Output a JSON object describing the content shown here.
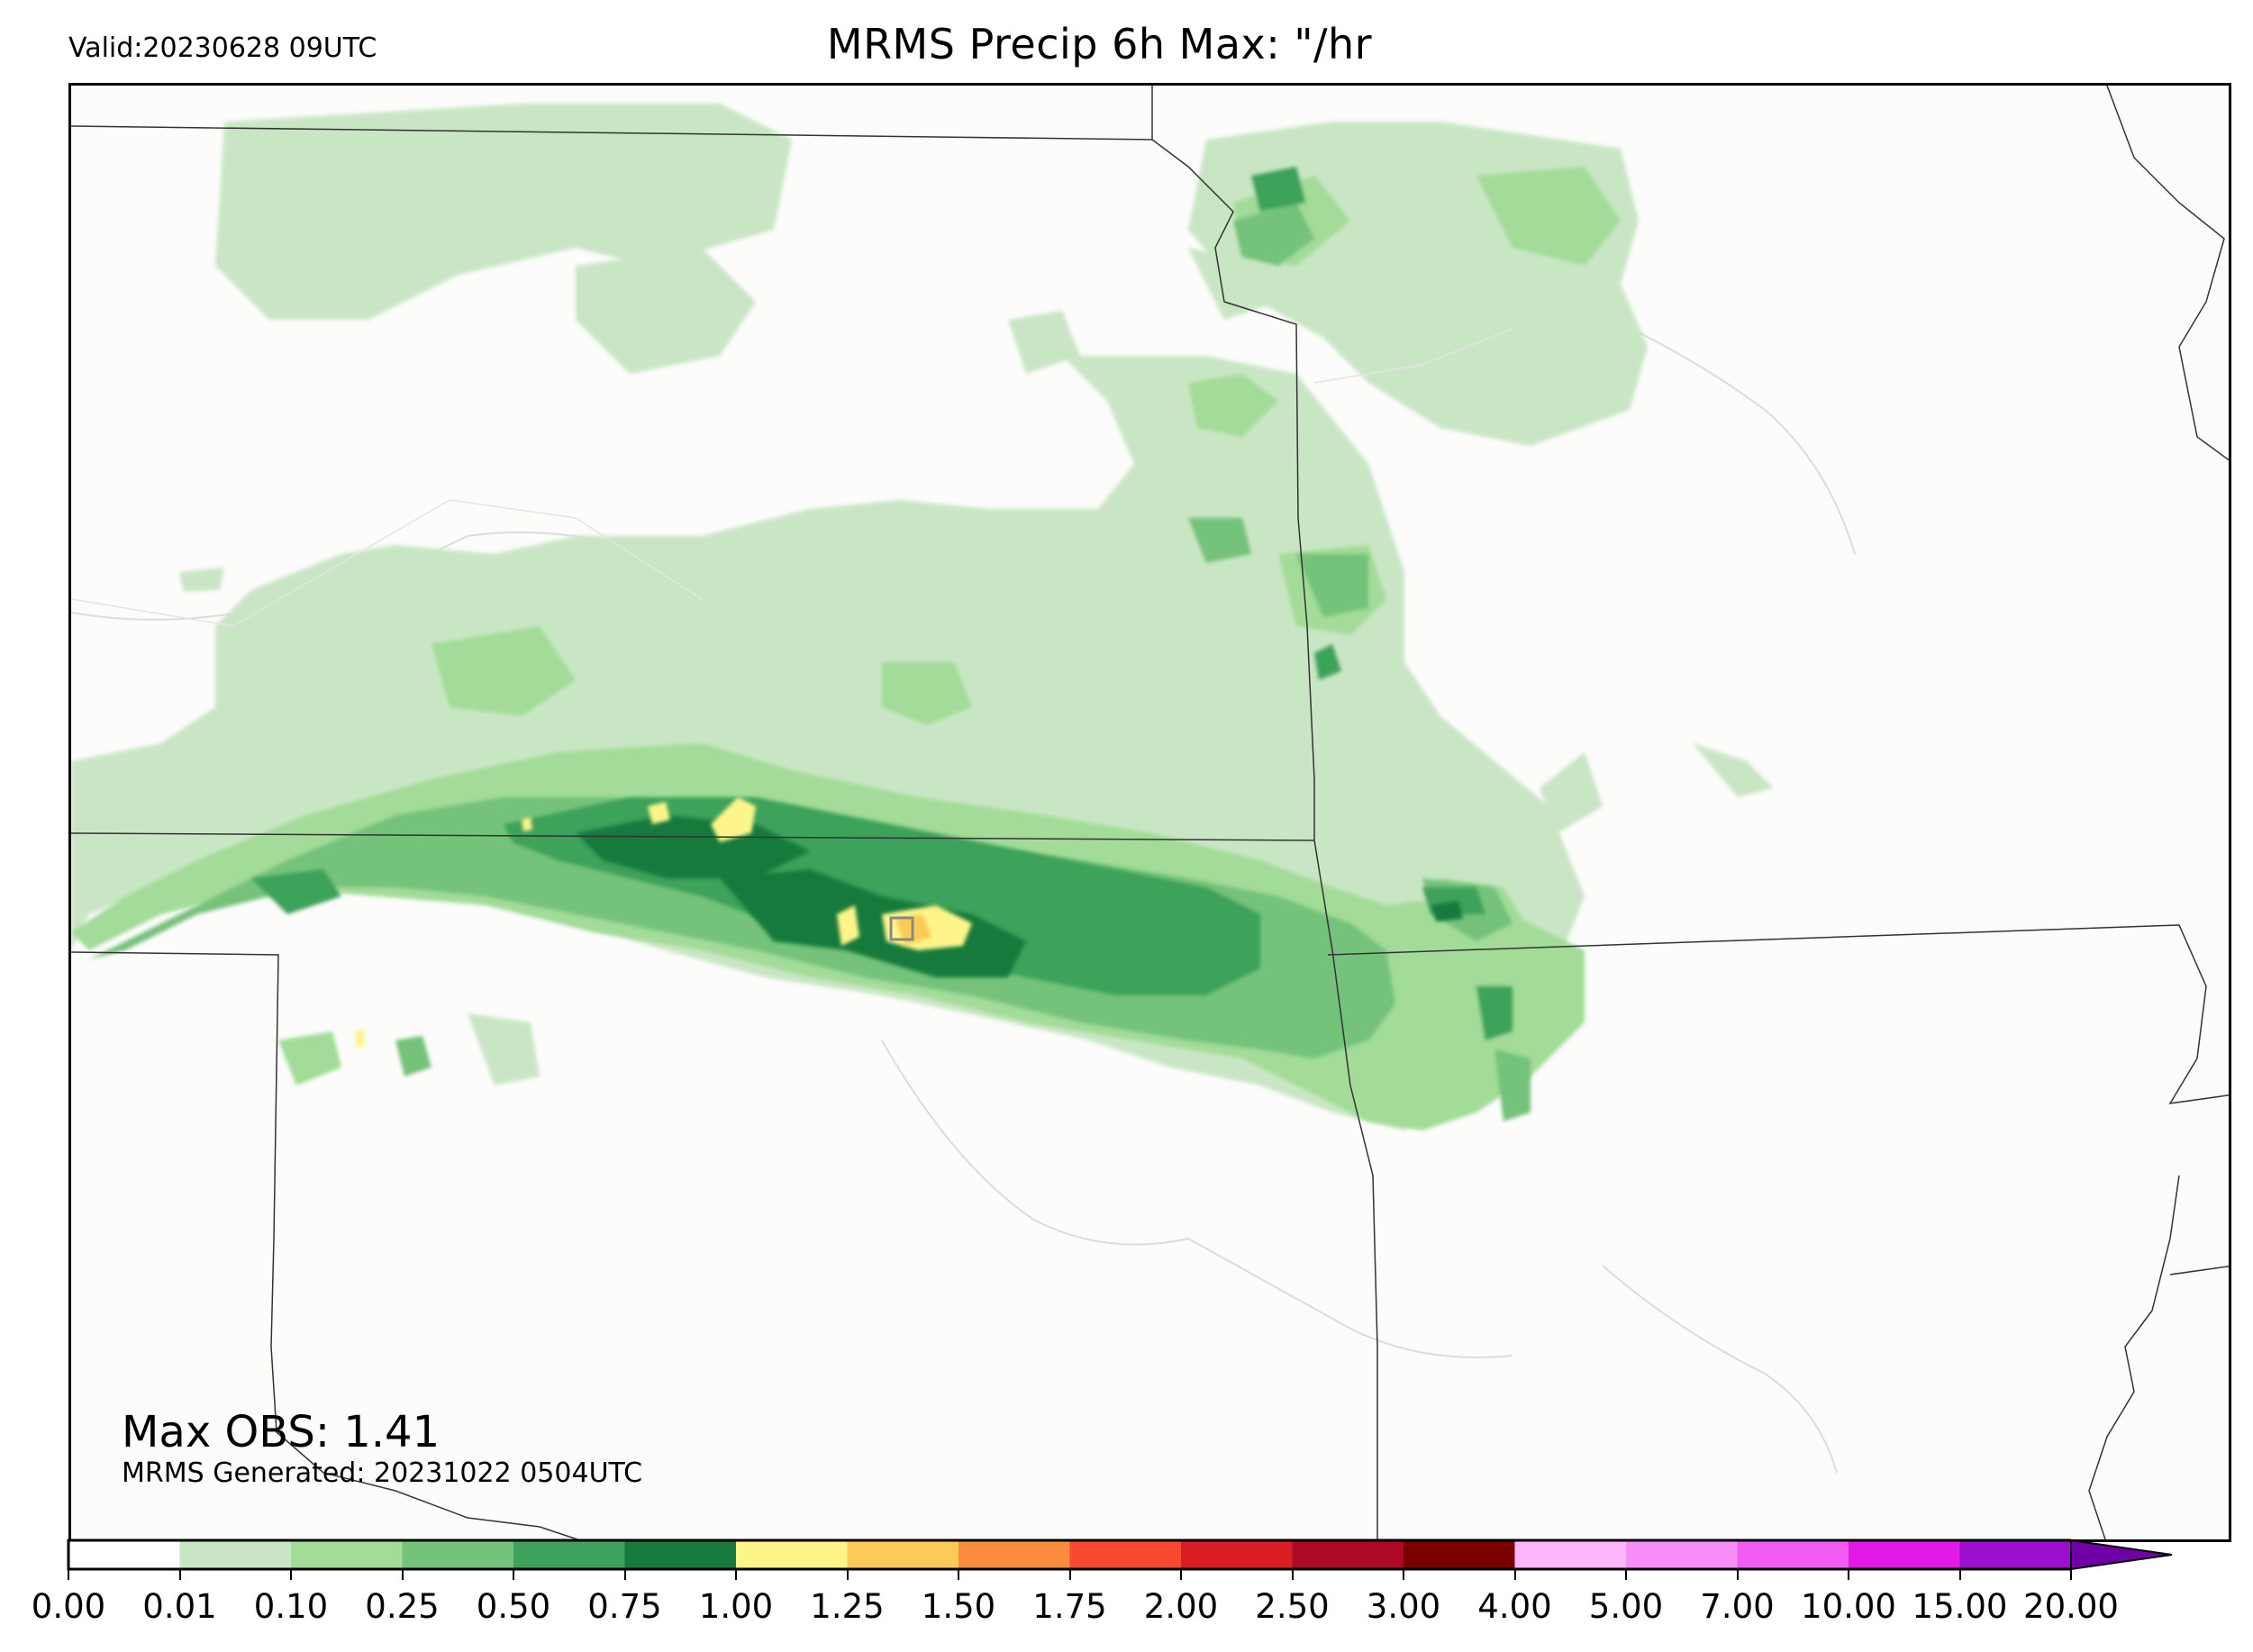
{
  "header": {
    "valid_text": "Valid:20230628 09UTC",
    "title": "MRMS Precip 6h Max: \"/hr"
  },
  "annotations": {
    "max_obs": "Max OBS: 1.41",
    "generated": "MRMS Generated: 20231022 0504UTC"
  },
  "colorbar": {
    "levels": [
      "0.00",
      "0.01",
      "0.10",
      "0.25",
      "0.50",
      "0.75",
      "1.00",
      "1.25",
      "1.50",
      "1.75",
      "2.00",
      "2.50",
      "3.00",
      "4.00",
      "5.00",
      "7.00",
      "10.00",
      "15.00",
      "20.00"
    ],
    "colors": [
      "#ffffff",
      "#c9e6c4",
      "#a2dc98",
      "#75c27a",
      "#3ea25a",
      "#177a3c",
      "#fdf58a",
      "#fccb57",
      "#fb8c3c",
      "#f74930",
      "#d81e22",
      "#ad0a26",
      "#7a0000",
      "#fcb6fc",
      "#f88ef8",
      "#f25cf2",
      "#e21ae6",
      "#9b0fcf"
    ],
    "extend_color": "#6f00a8"
  },
  "colors": {
    "background": "#fcfcfb",
    "border": "#000000",
    "state_line": "#333333",
    "river": "#d9d9d9"
  }
}
